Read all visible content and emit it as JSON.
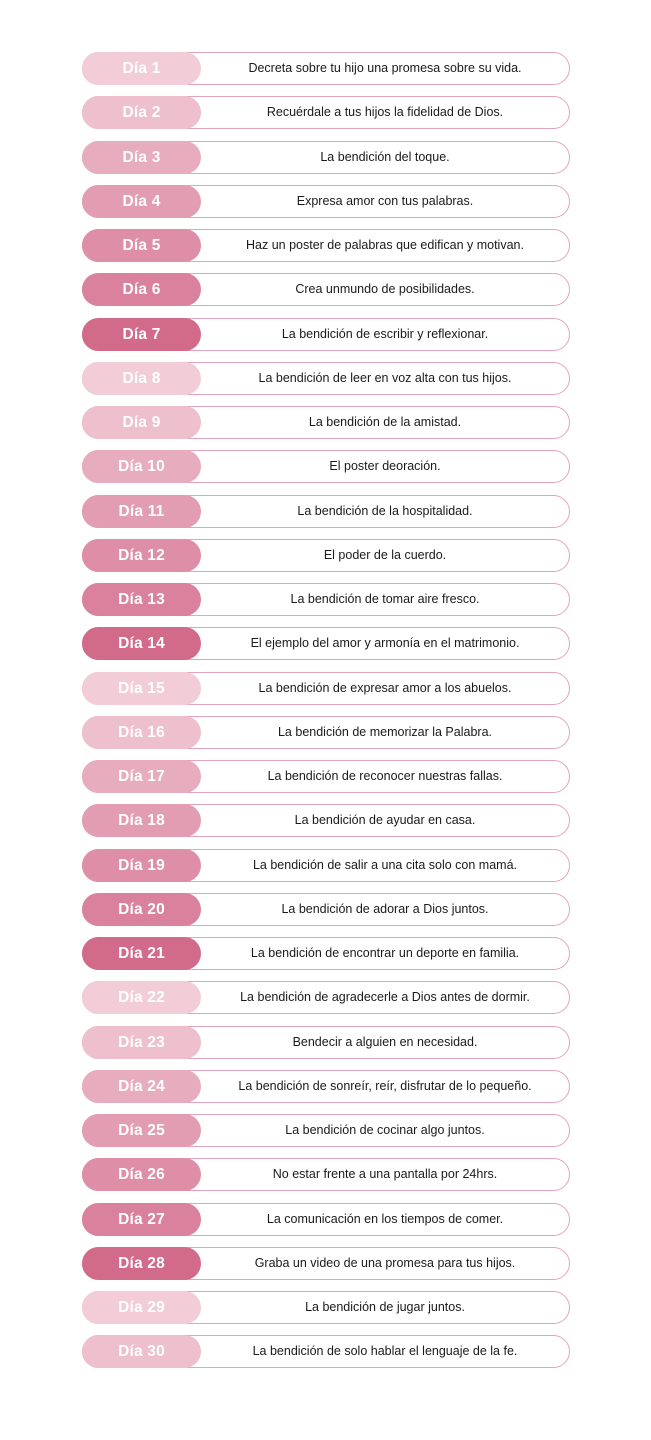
{
  "colors": {
    "shade_1": "#f2cdd8",
    "shade_2": "#eebfcd",
    "shade_3": "#e8acbf",
    "shade_4": "#e29db3",
    "shade_5": "#de8ea7",
    "shade_6": "#da819d",
    "shade_7": "#d26a8a",
    "border": "#e3a4bb"
  },
  "days": [
    {
      "label": "Día 1",
      "text": "Decreta sobre tu hijo una promesa sobre su vida."
    },
    {
      "label": "Día 2",
      "text": "Recuérdale a tus hijos la fidelidad de Dios."
    },
    {
      "label": "Día 3",
      "text": "La bendición del toque."
    },
    {
      "label": "Día 4",
      "text": "Expresa amor con tus palabras."
    },
    {
      "label": "Día 5",
      "text": "Haz un poster de palabras que edifican y motivan."
    },
    {
      "label": "Día 6",
      "text": "Crea unmundo de posibilidades."
    },
    {
      "label": "Día 7",
      "text": "La bendición de escribir y reflexionar."
    },
    {
      "label": "Día 8",
      "text": "La bendición de leer en voz alta con tus hijos."
    },
    {
      "label": "Día 9",
      "text": "La bendición de la amistad."
    },
    {
      "label": "Día 10",
      "text": "El poster deoración."
    },
    {
      "label": "Día 11",
      "text": "La bendición de la hospitalidad."
    },
    {
      "label": "Día 12",
      "text": "El poder de la cuerdo."
    },
    {
      "label": "Día 13",
      "text": "La bendición de tomar aire fresco."
    },
    {
      "label": "Día 14",
      "text": "El ejemplo del amor y armonía en el matrimonio."
    },
    {
      "label": "Día 15",
      "text": "La bendición de expresar amor a los abuelos."
    },
    {
      "label": "Día 16",
      "text": "La bendición de memorizar la Palabra."
    },
    {
      "label": "Día 17",
      "text": "La bendición de reconocer nuestras fallas."
    },
    {
      "label": "Día 18",
      "text": "La bendición de ayudar en casa."
    },
    {
      "label": "Día 19",
      "text": "La bendición de salir a una cita solo con mamá."
    },
    {
      "label": "Día 20",
      "text": "La bendición de adorar a Dios juntos."
    },
    {
      "label": "Día 21",
      "text": "La bendición de encontrar un deporte en familia."
    },
    {
      "label": "Día 22",
      "text": "La bendición de agradecerle a Dios antes de dormir."
    },
    {
      "label": "Día 23",
      "text": "Bendecir a alguien en necesidad."
    },
    {
      "label": "Día 24",
      "text": "La bendición de sonreír, reír, disfrutar de lo pequeño."
    },
    {
      "label": "Día 25",
      "text": "La bendición de cocinar algo juntos."
    },
    {
      "label": "Día 26",
      "text": "No estar frente a una pantalla por 24hrs."
    },
    {
      "label": "Día 27",
      "text": "La comunicación en los tiempos de comer."
    },
    {
      "label": "Día 28",
      "text": "Graba un video de una promesa para tus hijos."
    },
    {
      "label": "Día 29",
      "text": "La bendición de jugar juntos."
    },
    {
      "label": "Día 30",
      "text": "La bendición de solo hablar el lenguaje de la fe."
    }
  ]
}
